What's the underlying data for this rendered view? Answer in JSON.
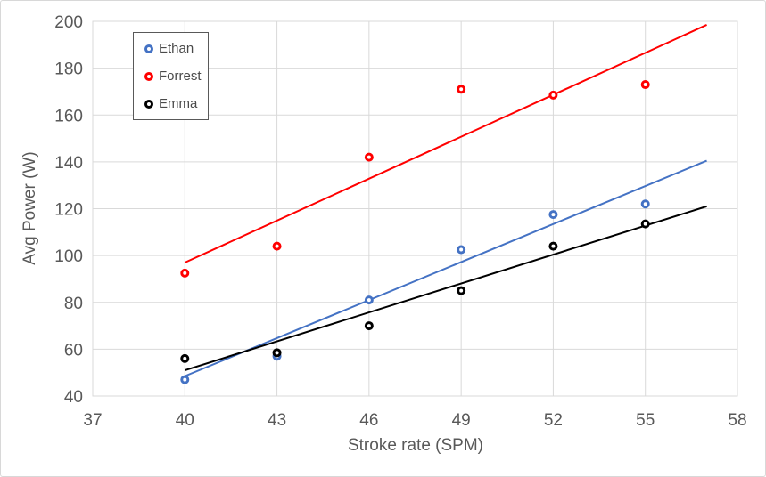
{
  "chart_data": {
    "type": "scatter",
    "title": "",
    "xlabel": "Stroke rate (SPM)",
    "ylabel": "Avg Power (W)",
    "xlim": [
      37,
      58
    ],
    "ylim": [
      40,
      200
    ],
    "x_ticks": [
      37,
      40,
      43,
      46,
      49,
      52,
      55,
      58
    ],
    "y_ticks": [
      40,
      60,
      80,
      100,
      120,
      140,
      160,
      180,
      200
    ],
    "grid": true,
    "legend_position": "top-left-inside",
    "x": [
      40,
      43,
      46,
      49,
      52,
      55
    ],
    "series": [
      {
        "name": "Ethan",
        "color": "#4472C4",
        "values": [
          47,
          57,
          81,
          102.5,
          117.5,
          122
        ],
        "trendline": {
          "x1": 40,
          "y1": 48.5,
          "x2": 57,
          "y2": 140.5
        }
      },
      {
        "name": "Forrest",
        "color": "#FF0000",
        "values": [
          92.5,
          104,
          142,
          171,
          168.5,
          173
        ],
        "trendline": {
          "x1": 40,
          "y1": 97,
          "x2": 57,
          "y2": 198.5
        }
      },
      {
        "name": "Emma",
        "color": "#000000",
        "values": [
          56,
          58.5,
          70,
          85,
          104,
          113.5
        ],
        "trendline": {
          "x1": 40,
          "y1": 51,
          "x2": 57,
          "y2": 121
        }
      }
    ]
  },
  "colors": {
    "grid": "#d9d9d9",
    "plot_border": "#d9d9d9",
    "axis_text": "#595959",
    "legend_border": "#595959",
    "background": "#ffffff"
  }
}
